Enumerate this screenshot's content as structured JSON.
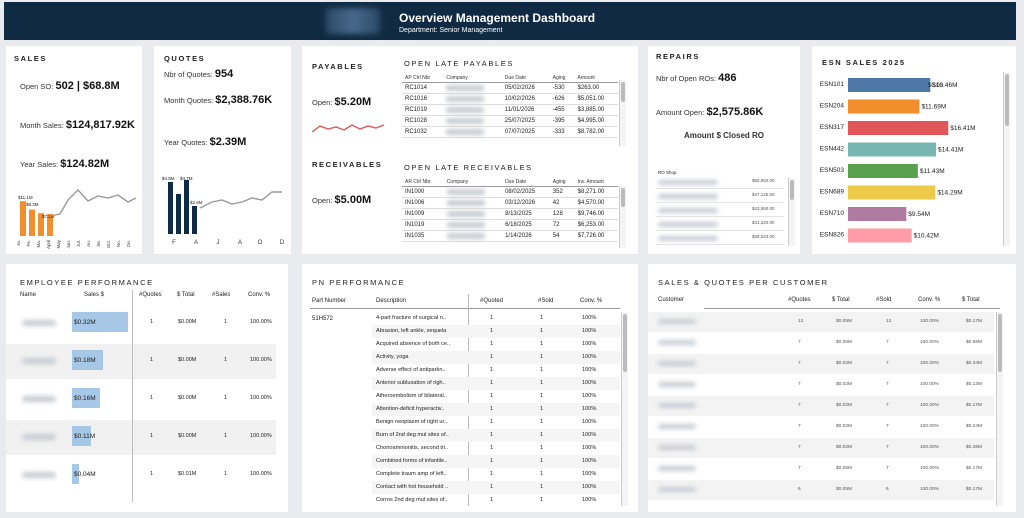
{
  "header": {
    "title": "Overview Management Dashboard",
    "subtitle": "Department: Senior Management"
  },
  "sales": {
    "title": "SALES",
    "open_so_label": "Open SO:",
    "open_so_value": "502 | $68.8M",
    "month_label": "Month Sales:",
    "month_value": "$124,817.92K",
    "year_label": "Year Sales:",
    "year_value": "$124.82M",
    "bar_labels": [
      "$11.1M",
      "$8.3M",
      "$7.2M"
    ],
    "months": [
      "Ja.",
      "Fe.",
      "Ma.",
      "April",
      "May",
      "Jun.",
      "Jul.",
      "Au.",
      "Se.",
      "Oct.",
      "No.",
      "De."
    ]
  },
  "quotes": {
    "title": "QUOTES",
    "nbr_label": "Nbr of Quotes:",
    "nbr_value": "954",
    "month_label": "Month Quotes:",
    "month_value": "$2,388.76K",
    "year_label": "Year Quotes:",
    "year_value": "$2.39M",
    "bar_labels": [
      "$4.8M",
      "$4.7M",
      "$2.6M"
    ],
    "months": [
      "F",
      "A",
      "J",
      "A",
      "O",
      "D"
    ]
  },
  "payables": {
    "title": "PAYABLES",
    "open_label": "Open:",
    "open_value": "$5.20M"
  },
  "receivables": {
    "title": "RECEIVABLES",
    "open_label": "Open:",
    "open_value": "$5.00M"
  },
  "late_payables": {
    "title": "OPEN LATE PAYABLES",
    "headers": [
      "AP Ctrl Nbr",
      "Company",
      "Due Date",
      "Aging",
      "Amount"
    ],
    "rows": [
      {
        "id": "RC1014",
        "date": "05/02/2026",
        "aging": "-530",
        "amount": "$263.00"
      },
      {
        "id": "RC1016",
        "date": "10/02/2026",
        "aging": "-626",
        "amount": "$5,051.00"
      },
      {
        "id": "RC1019",
        "date": "11/01/2026",
        "aging": "-455",
        "amount": "$3,885.00"
      },
      {
        "id": "RC1028",
        "date": "25/07/2025",
        "aging": "-395",
        "amount": "$4,995.00"
      },
      {
        "id": "RC1032",
        "date": "07/07/2025",
        "aging": "-333",
        "amount": "$8,782.00"
      }
    ]
  },
  "late_receivables": {
    "title": "OPEN LATE RECEIVABLES",
    "headers": [
      "AR Ctrl Nbr",
      "Company",
      "Due Date",
      "Aging",
      "Inv. Amount"
    ],
    "rows": [
      {
        "id": "IN1000",
        "date": "08/02/2025",
        "aging": "352",
        "amount": "$8,271.00"
      },
      {
        "id": "IN1006",
        "date": "03/12/2026",
        "aging": "42",
        "amount": "$4,570.00"
      },
      {
        "id": "IN1009",
        "date": "8/13/2025",
        "aging": "128",
        "amount": "$9,746.00"
      },
      {
        "id": "IN1019",
        "date": "6/18/2025",
        "aging": "72",
        "amount": "$6,253.00"
      },
      {
        "id": "IN1035",
        "date": "1/14/2026",
        "aging": "54",
        "amount": "$7,726.00"
      }
    ]
  },
  "repairs": {
    "title": "REPAIRS",
    "open_label": "Nbr of Open ROs:",
    "open_value": "486",
    "amount_label": "Amount Open:",
    "amount_value": "$2,575.86K",
    "closed_label": "Amount $ Closed RO",
    "shop_header": "RO Shop",
    "shop_values": [
      "$65,950.00",
      "$47,125.00",
      "$43,550.00",
      "$41,220.00",
      "$39,043.00"
    ]
  },
  "esn": {
    "title": "ESN SALES 2025",
    "colors": [
      "#4e79a7",
      "#f28e2b",
      "#e15759",
      "#76b7b2",
      "#59a14f",
      "#edc948",
      "#b07aa1",
      "#ff9da7"
    ],
    "items": [
      {
        "name": "ESN101",
        "label": "$13.46M",
        "value": 13.46
      },
      {
        "name": "ESN204",
        "label": "$11.69M",
        "value": 11.69
      },
      {
        "name": "ESN317",
        "label": "$16.41M",
        "value": 16.41
      },
      {
        "name": "ESN442",
        "label": "$14.41M",
        "value": 14.41
      },
      {
        "name": "ESN503",
        "label": "$11.43M",
        "value": 11.43
      },
      {
        "name": "ESN689",
        "label": "$14.29M",
        "value": 14.29
      },
      {
        "name": "ESN710",
        "label": "$9.54M",
        "value": 9.54
      },
      {
        "name": "ESN826",
        "label": "$10.42M",
        "value": 10.42
      }
    ],
    "first_bar_inner_label": "$0.00"
  },
  "employee": {
    "title": "EMPLOYEE PERFORMANCE",
    "headers": [
      "Name",
      "Sales $",
      "#Quotes",
      "$ Total",
      "#Sales",
      "Conv. %"
    ],
    "rows": [
      {
        "sales": "$0.32M",
        "quotes": "1",
        "total": "$0.00M",
        "nsales": "1",
        "conv": "100.00%",
        "frac": 1.0
      },
      {
        "sales": "$0.18M",
        "quotes": "1",
        "total": "$0.00M",
        "nsales": "1",
        "conv": "100.00%",
        "frac": 0.56
      },
      {
        "sales": "$0.16M",
        "quotes": "1",
        "total": "$0.00M",
        "nsales": "1",
        "conv": "100.00%",
        "frac": 0.5
      },
      {
        "sales": "$0.11M",
        "quotes": "1",
        "total": "$0.00M",
        "nsales": "1",
        "conv": "100.00%",
        "frac": 0.34
      },
      {
        "sales": "$0.04M",
        "quotes": "1",
        "total": "$0.01M",
        "nsales": "1",
        "conv": "100.00%",
        "frac": 0.13
      }
    ]
  },
  "pn": {
    "title": "PN PERFORMANCE",
    "headers": [
      "Part Number",
      "Description",
      "#Quoted",
      "#Sold",
      "Conv. %"
    ],
    "part": "51H572",
    "rows": [
      "4-part fracture of surgical n..",
      "Abrasion, left ankle, sequela",
      "Acquired absence of both ce..",
      "Activity, yoga",
      "Adverse effect of antiparkn..",
      "Anterior subluxation of righ..",
      "Atheroembolism of bilateral..",
      "Attention-deficit hyperactiv..",
      "Benign neoplasm of right ur..",
      "Burn of 2nd deg mul sites of..",
      "Chorioamnionitis, second tri..",
      "Combined forms of infantile..",
      "Complete traum amp of left..",
      "Contact with hot household ..",
      "Corros 2nd deg mul sites of.."
    ],
    "quoted": "1",
    "sold": "1",
    "conv": "100%"
  },
  "customer": {
    "title": "SALES & QUOTES PER CUSTOMER",
    "headers": [
      "Customer",
      "#Quotes",
      "$ Total",
      "#Sold",
      "Conv. %",
      "$ Total"
    ],
    "rows": [
      {
        "q": "12",
        "t": "$0.05M",
        "s": "12",
        "c": "100.00%",
        "t2": "$0.17M"
      },
      {
        "q": "7",
        "t": "$0.05M",
        "s": "7",
        "c": "100.00%",
        "t2": "$0.58M"
      },
      {
        "q": "7",
        "t": "$0.02M",
        "s": "7",
        "c": "100.00%",
        "t2": "$0.34M"
      },
      {
        "q": "7",
        "t": "$0.02M",
        "s": "7",
        "c": "100.00%",
        "t2": "$0.13M"
      },
      {
        "q": "7",
        "t": "$0.02M",
        "s": "7",
        "c": "100.00%",
        "t2": "$0.17M"
      },
      {
        "q": "7",
        "t": "$0.02M",
        "s": "7",
        "c": "100.00%",
        "t2": "$0.24M"
      },
      {
        "q": "7",
        "t": "$0.02M",
        "s": "7",
        "c": "100.00%",
        "t2": "$0.36M"
      },
      {
        "q": "7",
        "t": "$0.05M",
        "s": "7",
        "c": "100.00%",
        "t2": "$0.17M"
      },
      {
        "q": "6",
        "t": "$0.05M",
        "s": "6",
        "c": "100.00%",
        "t2": "$0.17M"
      }
    ]
  }
}
